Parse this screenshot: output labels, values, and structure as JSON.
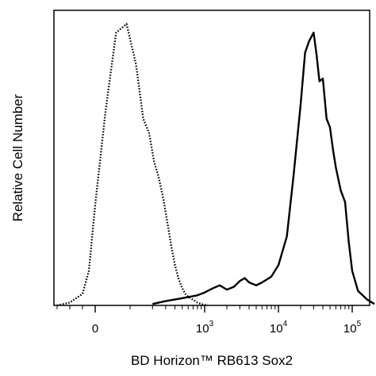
{
  "chart_data": {
    "type": "line",
    "title": "",
    "xlabel": "BD Horizon™ RB613  Sox2",
    "ylabel": "Relative Cell Number",
    "x_scale": "biexponential",
    "xlim": [
      -500,
      200000
    ],
    "ylim": [
      0,
      100
    ],
    "grid": false,
    "legend": "none",
    "x_ticks": [
      {
        "value": 0,
        "base": "0",
        "exp": ""
      },
      {
        "value": 1000,
        "base": "10",
        "exp": "3"
      },
      {
        "value": 10000,
        "base": "10",
        "exp": "4"
      },
      {
        "value": 100000,
        "base": "10",
        "exp": "5"
      }
    ],
    "series": [
      {
        "style": "dotted",
        "color": "#000000",
        "x": [
          -300,
          -200,
          -100,
          -50,
          0,
          30,
          60,
          90,
          120,
          150,
          180,
          210,
          240,
          280,
          320,
          360,
          400,
          450,
          500,
          550,
          600,
          700,
          800,
          900,
          1000,
          1100
        ],
        "y": [
          0,
          1,
          4,
          12,
          35,
          68,
          95,
          98,
          84,
          65,
          60,
          50,
          45,
          37,
          28,
          20,
          14,
          9,
          6,
          4,
          3,
          2,
          1,
          0.5,
          0.2,
          0
        ]
      },
      {
        "style": "solid",
        "color": "#000000",
        "x": [
          200,
          300,
          500,
          800,
          1000,
          1300,
          1600,
          2000,
          2500,
          3000,
          3500,
          4000,
          5000,
          6000,
          8000,
          10000,
          13000,
          16000,
          20000,
          23000,
          26000,
          30000,
          33000,
          36000,
          40000,
          45000,
          50000,
          55000,
          60000,
          70000,
          80000,
          90000,
          100000,
          120000,
          160000,
          200000
        ],
        "y": [
          0.5,
          1.5,
          2.5,
          3.5,
          4.5,
          6,
          7,
          5.5,
          6.5,
          8.5,
          9.5,
          8,
          7,
          8,
          10,
          14,
          24,
          45,
          70,
          88,
          92,
          95,
          87,
          78,
          79,
          65,
          62,
          54,
          48,
          40,
          36,
          22,
          12,
          5,
          2,
          0.5
        ]
      }
    ]
  }
}
